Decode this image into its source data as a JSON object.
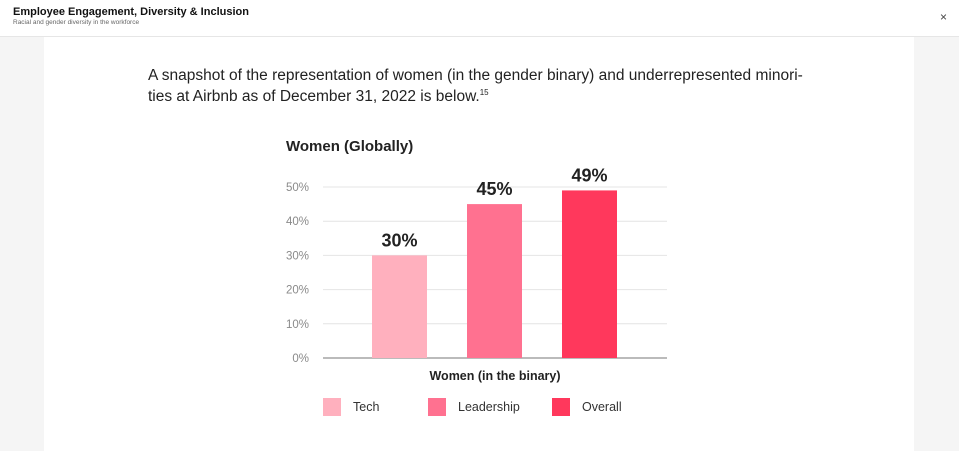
{
  "header": {
    "title": "Employee Engagement, Diversity & Inclusion",
    "subtitle": "Racial and gender diversity in the workforce",
    "close_label": "×"
  },
  "intro": {
    "text": "A snapshot of the representation of women (in the gender binary) and underrepresented minori-ties at Airbnb as of December 31, 2022 is below.",
    "footnote": "15"
  },
  "chart_data": {
    "type": "bar",
    "title": "Women (Globally)",
    "xlabel": "Women (in the binary)",
    "ylabel": "",
    "categories": [
      "Tech",
      "Leadership",
      "Overall"
    ],
    "values": [
      30,
      45,
      49
    ],
    "data_labels": [
      "30%",
      "45%",
      "49%"
    ],
    "colors": [
      "#ffb0be",
      "#ff7190",
      "#ff385c"
    ],
    "ylim": [
      0,
      50
    ],
    "yticks": [
      0,
      10,
      20,
      30,
      40,
      50
    ],
    "ytick_labels": [
      "0%",
      "10%",
      "20%",
      "30%",
      "40%",
      "50%"
    ],
    "grid": true,
    "legend": {
      "placement": "bottom",
      "entries": [
        "Tech",
        "Leadership",
        "Overall"
      ]
    }
  }
}
